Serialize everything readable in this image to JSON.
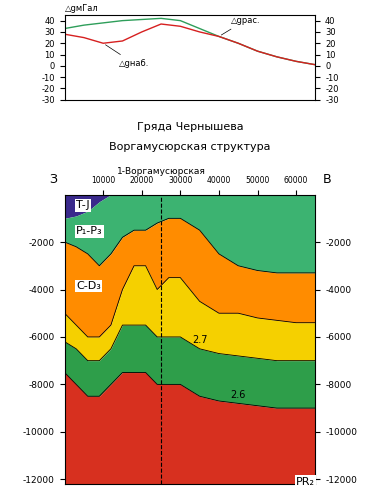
{
  "chart_data": [
    {
      "type": "line",
      "ylabel": "△gмГал",
      "x": [
        0,
        5000,
        10000,
        15000,
        20000,
        25000,
        30000,
        35000,
        40000,
        45000,
        50000,
        55000,
        60000,
        65000
      ],
      "series": [
        {
          "name": "△gрас.",
          "color": "#2e9e5a",
          "values": [
            33,
            36,
            38,
            40,
            41,
            42,
            40,
            33,
            26,
            20,
            13,
            8,
            4,
            1
          ]
        },
        {
          "name": "△gнаб.",
          "color": "#d62020",
          "values": [
            28,
            25,
            20,
            22,
            30,
            37,
            35,
            30,
            26,
            20,
            13,
            8,
            4,
            1
          ]
        }
      ],
      "xlim": [
        0,
        65000
      ],
      "ylim": [
        -30,
        45
      ],
      "yticks": [
        40,
        30,
        20,
        10,
        0,
        -10,
        -20,
        -30
      ],
      "tick_labels": "y"
    },
    {
      "type": "section",
      "title": "Гряда Чернышева",
      "subtitle": "Воргамусюрская структура",
      "west": "З",
      "east": "В",
      "well": {
        "name": "1-Воргамусюрская",
        "x": 25000
      },
      "x": [
        0,
        3000,
        6000,
        9000,
        12000,
        15000,
        18000,
        21000,
        24000,
        27000,
        30000,
        35000,
        40000,
        45000,
        50000,
        55000,
        60000,
        65000
      ],
      "horizons": [
        {
          "depth": [
            0,
            0,
            0,
            0,
            0,
            0,
            0,
            0,
            0,
            0,
            0,
            0,
            0,
            0,
            0,
            0,
            0,
            0
          ]
        },
        {
          "depth": [
            -1000,
            -900,
            -700,
            -300,
            0,
            0,
            0,
            0,
            0,
            0,
            0,
            0,
            0,
            0,
            0,
            0,
            0,
            0
          ]
        },
        {
          "depth": [
            -2000,
            -2200,
            -2500,
            -3000,
            -2500,
            -1800,
            -1500,
            -1500,
            -1200,
            -1000,
            -1000,
            -1500,
            -2500,
            -3000,
            -3200,
            -3300,
            -3300,
            -3300
          ]
        },
        {
          "depth": [
            -5000,
            -5500,
            -6000,
            -6000,
            -5500,
            -4000,
            -3000,
            -3000,
            -4000,
            -3500,
            -3500,
            -4500,
            -5000,
            -5000,
            -5200,
            -5300,
            -5400,
            -5400
          ]
        },
        {
          "depth": [
            -6200,
            -6500,
            -7000,
            -7000,
            -6500,
            -5500,
            -5500,
            -5500,
            -6000,
            -6000,
            -6000,
            -6500,
            -6700,
            -6800,
            -6900,
            -7000,
            -7000,
            -7000
          ],
          "label": "2.7"
        },
        {
          "depth": [
            -7500,
            -8000,
            -8500,
            -8500,
            -8000,
            -7500,
            -7500,
            -7500,
            -8000,
            -8000,
            -8000,
            -8500,
            -8700,
            -8800,
            -8900,
            -9000,
            -9000,
            -9000
          ],
          "label": "2.6"
        }
      ],
      "layers": [
        {
          "name": "T-J",
          "color": "#3a2a8c"
        },
        {
          "name": "P₁-P₃",
          "color": "#3cb371"
        },
        {
          "name": "C-D₃",
          "color": "#ff8c00"
        },
        {
          "color": "#f5d000"
        },
        {
          "color": "#2e9e4a"
        },
        {
          "name": "PR₂",
          "color": "#d7301f"
        }
      ],
      "xlim": [
        0,
        65000
      ],
      "ylim": [
        -12200,
        0
      ],
      "xticks": [
        10000,
        20000,
        30000,
        40000,
        50000,
        60000
      ],
      "yticks": [
        -2000,
        -4000,
        -6000,
        -8000,
        -10000,
        -12000
      ]
    }
  ]
}
